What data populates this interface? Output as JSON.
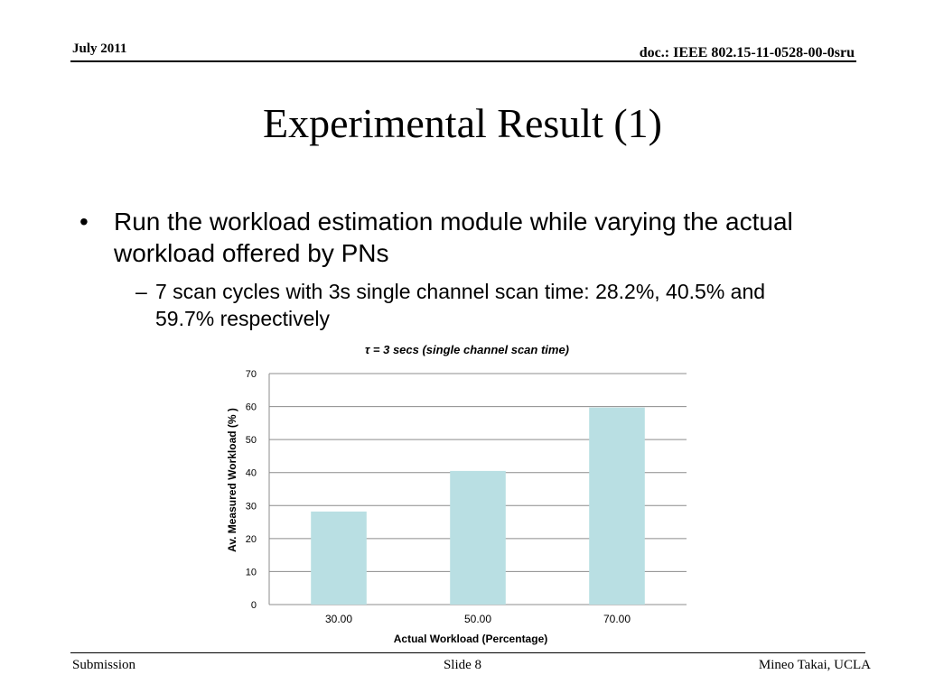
{
  "header": {
    "date": "July 2011",
    "doc": "doc.: IEEE 802.15-11-0528-00-0sru"
  },
  "title": "Experimental Result (1)",
  "bullets": [
    {
      "mark": "•",
      "text": "Run the workload estimation module while varying the actual workload offered by PNs"
    }
  ],
  "sub_bullets": [
    {
      "mark": "–",
      "text": "7 scan cycles with 3s single channel scan time: 28.2%, 40.5% and 59.7% respectively"
    }
  ],
  "chart_data": {
    "type": "bar",
    "title": "τ  = 3 secs (single channel scan time)",
    "xlabel": "Actual Workload (Percentage)",
    "ylabel": "Av. Measured Workload (% )",
    "categories": [
      "30.00",
      "50.00",
      "70.00"
    ],
    "values": [
      28.2,
      40.5,
      59.7
    ],
    "ylim": [
      0,
      70
    ],
    "yticks": [
      0,
      10,
      20,
      30,
      40,
      50,
      60,
      70
    ],
    "grid": true,
    "bar_color": "#b9dfe3",
    "grid_color": "#8c8c8c"
  },
  "footer": {
    "left": "Submission",
    "center": "Slide 8",
    "right": "Mineo Takai, UCLA"
  }
}
